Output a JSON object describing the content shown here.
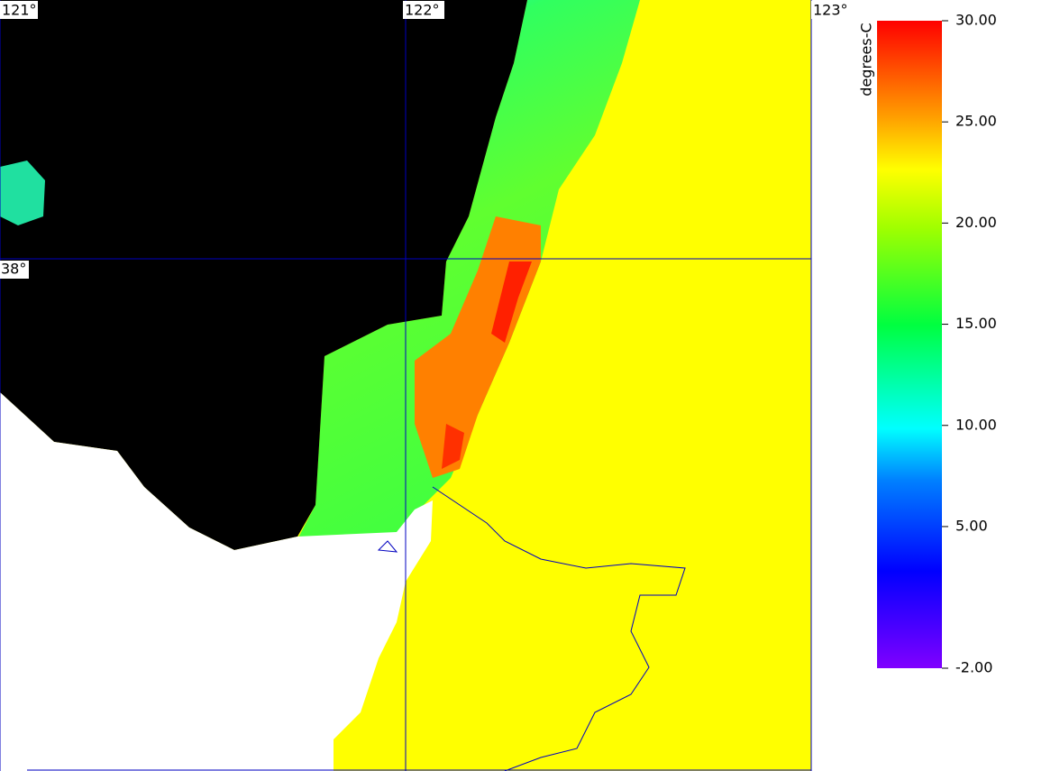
{
  "map": {
    "lon_labels": [
      "121°",
      "122°",
      "123°"
    ],
    "lat_labels": [
      "38°"
    ]
  },
  "colorbar": {
    "title": "degrees-C",
    "range": [
      -2,
      30
    ],
    "ticks": [
      {
        "value": 30,
        "label": "30.00"
      },
      {
        "value": 25,
        "label": "25.00"
      },
      {
        "value": 20,
        "label": "20.00"
      },
      {
        "value": 15,
        "label": "15.00"
      },
      {
        "value": 10,
        "label": "10.00"
      },
      {
        "value": 5,
        "label": "5.00"
      },
      {
        "value": -2,
        "label": "-2.00"
      }
    ]
  }
}
